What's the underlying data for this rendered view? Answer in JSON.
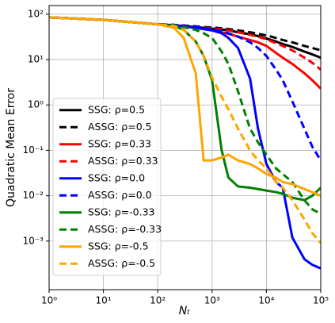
{
  "chart_data": {
    "type": "line",
    "xlabel": "Nₜ",
    "ylabel": "Quadratic Mean Error",
    "xscale": "log",
    "yscale": "log",
    "grid": true,
    "legend": "lower left",
    "xlim": [
      1,
      100000
    ],
    "ylim": [
      8.5e-05,
      155
    ],
    "xticks": [
      {
        "value": 1,
        "label": "10⁰"
      },
      {
        "value": 10,
        "label": "10¹"
      },
      {
        "value": 100,
        "label": "10²"
      },
      {
        "value": 1000,
        "label": "10³"
      },
      {
        "value": 10000,
        "label": "10⁴"
      },
      {
        "value": 100000,
        "label": "10⁵"
      }
    ],
    "yticks": [
      {
        "value": 0.001,
        "label": "10⁻³"
      },
      {
        "value": 0.01,
        "label": "10⁻²"
      },
      {
        "value": 0.1,
        "label": "10⁻¹"
      },
      {
        "value": 1,
        "label": "10⁰"
      },
      {
        "value": 10,
        "label": "10¹"
      },
      {
        "value": 100,
        "label": "10²"
      }
    ],
    "x": [
      1,
      10,
      100,
      200,
      300,
      500,
      700,
      1000,
      1500,
      2000,
      3000,
      5000,
      7000,
      10000,
      15000,
      20000,
      30000,
      50000,
      70000,
      100000
    ],
    "series": [
      {
        "name": "SSG: ρ=0.5",
        "color": "#000000",
        "dashed": false,
        "values": [
          85,
          75,
          60,
          57,
          55,
          52,
          50,
          48,
          46,
          44,
          40,
          36,
          33,
          29,
          25,
          22,
          19,
          15,
          13,
          11
        ]
      },
      {
        "name": "ASSG: ρ=0.5",
        "color": "#000000",
        "dashed": true,
        "values": [
          85,
          75,
          60,
          58,
          56,
          54,
          52,
          51,
          49,
          47,
          44,
          40,
          37,
          34,
          30,
          27,
          24,
          20,
          18,
          16
        ]
      },
      {
        "name": "SSG: ρ=0.33",
        "color": "#ff0000",
        "dashed": false,
        "values": [
          85,
          75,
          60,
          57,
          54,
          50,
          47,
          44,
          40,
          37,
          32,
          27,
          24,
          20,
          14,
          11,
          8,
          5,
          3.5,
          2.3
        ]
      },
      {
        "name": "ASSG: ρ=0.33",
        "color": "#ff0000",
        "dashed": true,
        "values": [
          85,
          75,
          60,
          58,
          56,
          53,
          51,
          49,
          46,
          44,
          40,
          35,
          32,
          28,
          23,
          20,
          16,
          11,
          8.5,
          6
        ]
      },
      {
        "name": "SSG: ρ=0.0",
        "color": "#0000ff",
        "dashed": false,
        "values": [
          85,
          75,
          60,
          57,
          54,
          50,
          47,
          44,
          38,
          30,
          18,
          3.8,
          0.3,
          0.05,
          0.02,
          0.015,
          0.0012,
          0.0004,
          0.0003,
          0.00025
        ]
      },
      {
        "name": "ASSG: ρ=0.0",
        "color": "#0000ff",
        "dashed": true,
        "values": [
          85,
          75,
          60,
          58,
          56,
          53,
          50,
          47,
          42,
          38,
          32,
          24,
          18,
          12,
          6,
          3.5,
          1.2,
          0.3,
          0.12,
          0.06
        ]
      },
      {
        "name": "SSG: ρ=-0.33",
        "color": "#008000",
        "dashed": false,
        "values": [
          85,
          75,
          60,
          55,
          45,
          25,
          12,
          3.5,
          0.1,
          0.025,
          0.016,
          0.015,
          0.014,
          0.013,
          0.012,
          0.011,
          0.009,
          0.008,
          0.01,
          0.015
        ]
      },
      {
        "name": "ASSG: ρ=-0.33",
        "color": "#008000",
        "dashed": true,
        "values": [
          85,
          75,
          60,
          57,
          52,
          45,
          38,
          30,
          15,
          8,
          2,
          0.3,
          0.15,
          0.08,
          0.04,
          0.03,
          0.02,
          0.008,
          0.005,
          0.004
        ]
      },
      {
        "name": "SSG: ρ=-0.5",
        "color": "#ffa500",
        "dashed": false,
        "values": [
          85,
          75,
          60,
          50,
          30,
          5,
          0.06,
          0.06,
          0.07,
          0.08,
          0.06,
          0.05,
          0.04,
          0.03,
          0.025,
          0.02,
          0.018,
          0.014,
          0.012,
          0.01
        ]
      },
      {
        "name": "ASSG: ρ=-0.5",
        "color": "#ffa500",
        "dashed": true,
        "values": [
          85,
          75,
          60,
          55,
          45,
          25,
          12,
          4,
          1.5,
          0.8,
          0.3,
          0.1,
          0.06,
          0.04,
          0.02,
          0.015,
          0.008,
          0.003,
          0.0015,
          0.0009
        ]
      }
    ]
  }
}
